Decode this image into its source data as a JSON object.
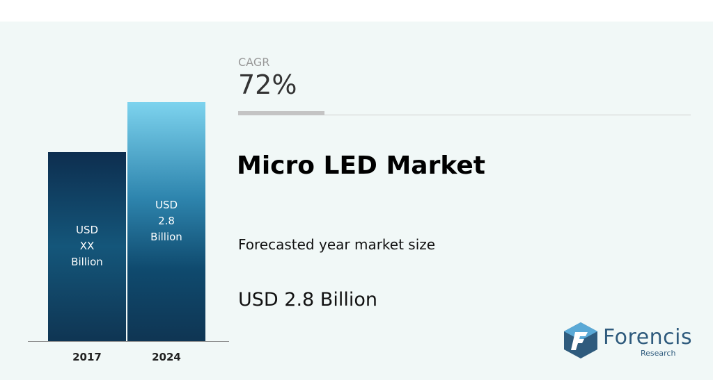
{
  "chart_data": {
    "type": "bar",
    "categories": [
      "2017",
      "2024"
    ],
    "values": [
      null,
      2.8
    ],
    "data_labels": [
      [
        "USD",
        "XX",
        "Billion"
      ],
      [
        "USD",
        "2.8",
        "Billion"
      ]
    ],
    "ylim": [
      0,
      3.7
    ]
  },
  "cagr": {
    "label": "CAGR",
    "value": "72%"
  },
  "title": "Micro LED Market",
  "forecast": {
    "label": "Forecasted year market size",
    "value": "USD 2.8 Billion"
  },
  "logo": {
    "name": "Forencis",
    "sub": "Research"
  },
  "colors": {
    "background": "#f1f8f7",
    "bar_dark": "#0d2e4f",
    "bar_light": "#7dd3ee",
    "logo": "#2f5b7d"
  }
}
